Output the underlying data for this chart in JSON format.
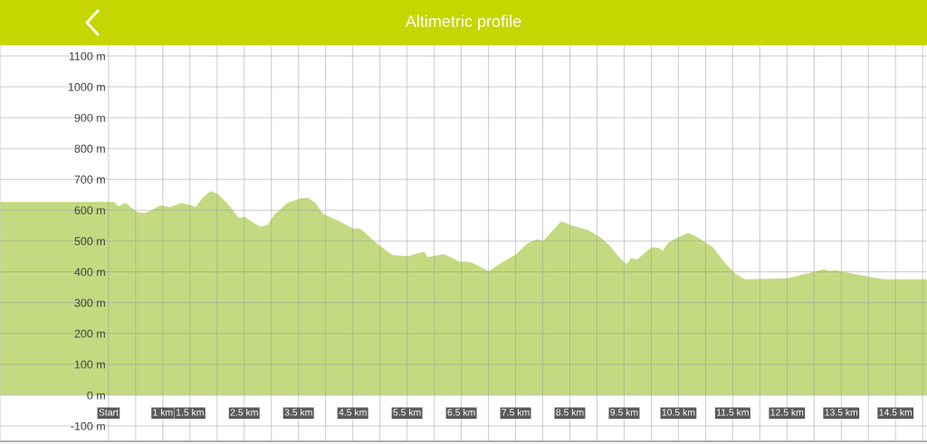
{
  "chart_data": {
    "type": "area",
    "title": "Altimetric profile",
    "x": [
      -2,
      0,
      0.1,
      0.18,
      0.31,
      0.51,
      0.66,
      0.8,
      0.96,
      1.13,
      1.35,
      1.51,
      1.6,
      1.73,
      1.88,
      2.01,
      2.18,
      2.4,
      2.51,
      2.63,
      2.8,
      2.93,
      3.06,
      3.3,
      3.55,
      3.68,
      3.8,
      3.96,
      4.23,
      4.51,
      4.64,
      4.93,
      5.23,
      5.51,
      5.81,
      5.88,
      6.18,
      6.46,
      6.68,
      7.01,
      7.23,
      7.51,
      7.73,
      7.9,
      8.01,
      8.34,
      8.51,
      8.84,
      9.06,
      9.23,
      9.39,
      9.54,
      9.63,
      9.73,
      10.01,
      10.14,
      10.21,
      10.31,
      10.51,
      10.68,
      10.84,
      11.01,
      11.13,
      11.39,
      11.56,
      11.73,
      12.51,
      13.18,
      13.29,
      13.39,
      14.01,
      14.3,
      15.08
    ],
    "values": [
      627,
      627,
      627,
      613,
      624,
      595,
      590,
      601,
      616,
      610,
      624,
      616,
      610,
      639,
      662,
      653,
      624,
      575,
      578,
      564,
      546,
      552,
      587,
      624,
      639,
      639,
      625,
      587,
      566,
      540,
      540,
      494,
      454,
      451,
      465,
      448,
      457,
      434,
      431,
      402,
      428,
      457,
      494,
      506,
      500,
      564,
      552,
      535,
      512,
      486,
      451,
      425,
      445,
      439,
      480,
      477,
      468,
      494,
      514,
      526,
      514,
      494,
      480,
      422,
      393,
      376,
      379,
      408,
      402,
      405,
      384,
      376,
      376
    ],
    "color": "#c3da80",
    "xlim": [
      -2,
      15.08
    ],
    "xticks": [
      {
        "value": 0,
        "label": "Start"
      },
      {
        "value": 0.5,
        "label": null
      },
      {
        "value": 1,
        "label": "1 km"
      },
      {
        "value": 1.5,
        "label": "1.5 km"
      },
      {
        "value": 2,
        "label": null
      },
      {
        "value": 2.5,
        "label": "2.5 km"
      },
      {
        "value": 3,
        "label": null
      },
      {
        "value": 3.5,
        "label": "3.5 km"
      },
      {
        "value": 4,
        "label": null
      },
      {
        "value": 4.5,
        "label": "4.5 km"
      },
      {
        "value": 5,
        "label": null
      },
      {
        "value": 5.5,
        "label": "5.5 km"
      },
      {
        "value": 6,
        "label": null
      },
      {
        "value": 6.5,
        "label": "6.5 km"
      },
      {
        "value": 7,
        "label": null
      },
      {
        "value": 7.5,
        "label": "7.5 km"
      },
      {
        "value": 8,
        "label": null
      },
      {
        "value": 8.5,
        "label": "8.5 km"
      },
      {
        "value": 9,
        "label": null
      },
      {
        "value": 9.5,
        "label": "9.5 km"
      },
      {
        "value": 10,
        "label": null
      },
      {
        "value": 10.5,
        "label": "10.5 km"
      },
      {
        "value": 11,
        "label": null
      },
      {
        "value": 11.5,
        "label": "11.5 km"
      },
      {
        "value": 12,
        "label": null
      },
      {
        "value": 12.5,
        "label": "12.5 km"
      },
      {
        "value": 13,
        "label": null
      },
      {
        "value": 13.5,
        "label": "13.5 km"
      },
      {
        "value": 14,
        "label": null
      },
      {
        "value": 14.5,
        "label": "14.5 km"
      },
      {
        "value": 15,
        "label": null
      }
    ],
    "ylim": [
      -150,
      1135
    ],
    "yticks": [
      {
        "value": -100,
        "label": "-100 m"
      },
      {
        "value": 0,
        "label": "0 m"
      },
      {
        "value": 100,
        "label": "100 m"
      },
      {
        "value": 200,
        "label": "200 m"
      },
      {
        "value": 300,
        "label": "300 m"
      },
      {
        "value": 400,
        "label": "400 m"
      },
      {
        "value": 500,
        "label": "500 m"
      },
      {
        "value": 600,
        "label": "600 m"
      },
      {
        "value": 700,
        "label": "700 m"
      },
      {
        "value": 800,
        "label": "800 m"
      },
      {
        "value": 900,
        "label": "900 m"
      },
      {
        "value": 1000,
        "label": "1000 m"
      },
      {
        "value": 1100,
        "label": "1100 m"
      }
    ],
    "grid": true
  }
}
